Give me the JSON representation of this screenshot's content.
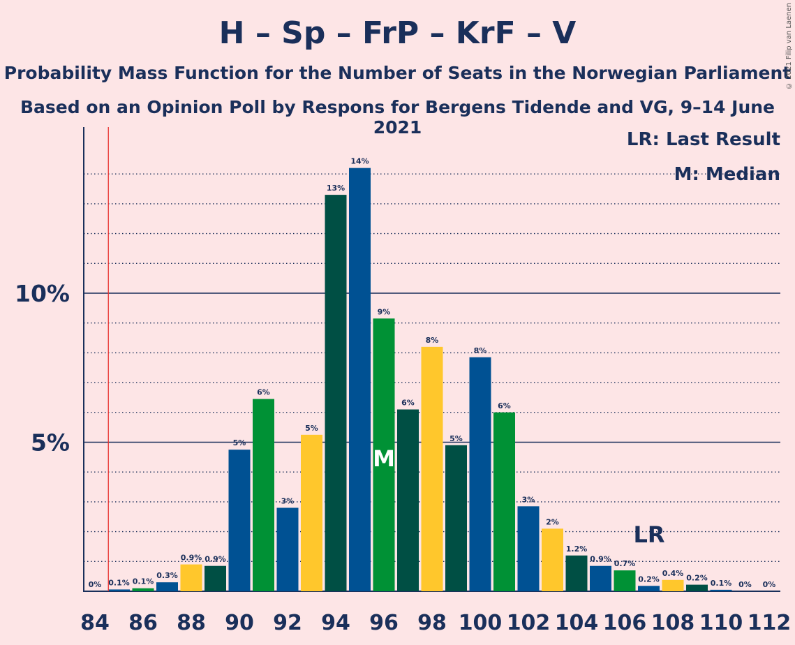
{
  "header": {
    "title": "H – Sp – FrP – KrF – V",
    "subtitle1": "Probability Mass Function for the Number of Seats in the Norwegian Parliament",
    "subtitle2": "Based on an Opinion Poll by Respons for Bergens Tidende and VG, 9–14 June 2021",
    "copyright": "© 2021 Filip van Laenen"
  },
  "legend": {
    "lr": "LR: Last Result",
    "median": "M: Median"
  },
  "markers": {
    "lr_label": "LR",
    "median_label": "M",
    "last_result_seat": 85,
    "median_seat": 96
  },
  "colors": {
    "background": "#fde5e6",
    "text": "#1a2f5a",
    "last_result_line": "#e8312f",
    "bar_palette": [
      "#005193",
      "#009135",
      "#005193",
      "#ffc72c",
      "#004f44"
    ]
  },
  "chart_data": {
    "type": "bar",
    "ylim": [
      0,
      15.5
    ],
    "yticks": [
      {
        "value": 5,
        "label": "5%"
      },
      {
        "value": 10,
        "label": "10%"
      }
    ],
    "xtick_labels": [
      "84",
      "86",
      "88",
      "90",
      "92",
      "94",
      "96",
      "98",
      "100",
      "102",
      "104",
      "106",
      "108",
      "110",
      "112"
    ],
    "x": [
      84,
      85,
      86,
      87,
      88,
      89,
      90,
      91,
      92,
      93,
      94,
      95,
      96,
      97,
      98,
      99,
      100,
      101,
      102,
      103,
      104,
      105,
      106,
      107,
      108,
      109,
      110,
      111,
      112
    ],
    "values": [
      0,
      0.06,
      0.1,
      0.3,
      0.9,
      0.85,
      4.75,
      6.45,
      2.8,
      5.25,
      13.3,
      14.2,
      9.15,
      6.1,
      8.2,
      4.9,
      7.85,
      6.0,
      2.85,
      2.1,
      1.2,
      0.85,
      0.7,
      0.18,
      0.38,
      0.22,
      0.05,
      0,
      0
    ],
    "labels": [
      "0%",
      "0.1%",
      "0.1%",
      "0.3%",
      "0.9%",
      "0.9%",
      "5%",
      "6%",
      "3%",
      "5%",
      "13%",
      "14%",
      "9%",
      "6%",
      "8%",
      "5%",
      "8%",
      "6%",
      "3%",
      "2%",
      "1.2%",
      "0.9%",
      "0.7%",
      "0.2%",
      "0.4%",
      "0.2%",
      "0.1%",
      "0%",
      "0%"
    ],
    "color_index": [
      4,
      0,
      1,
      0,
      3,
      4,
      0,
      1,
      0,
      3,
      4,
      0,
      1,
      4,
      3,
      4,
      0,
      1,
      0,
      3,
      4,
      0,
      1,
      0,
      3,
      4,
      0,
      1,
      0
    ]
  }
}
